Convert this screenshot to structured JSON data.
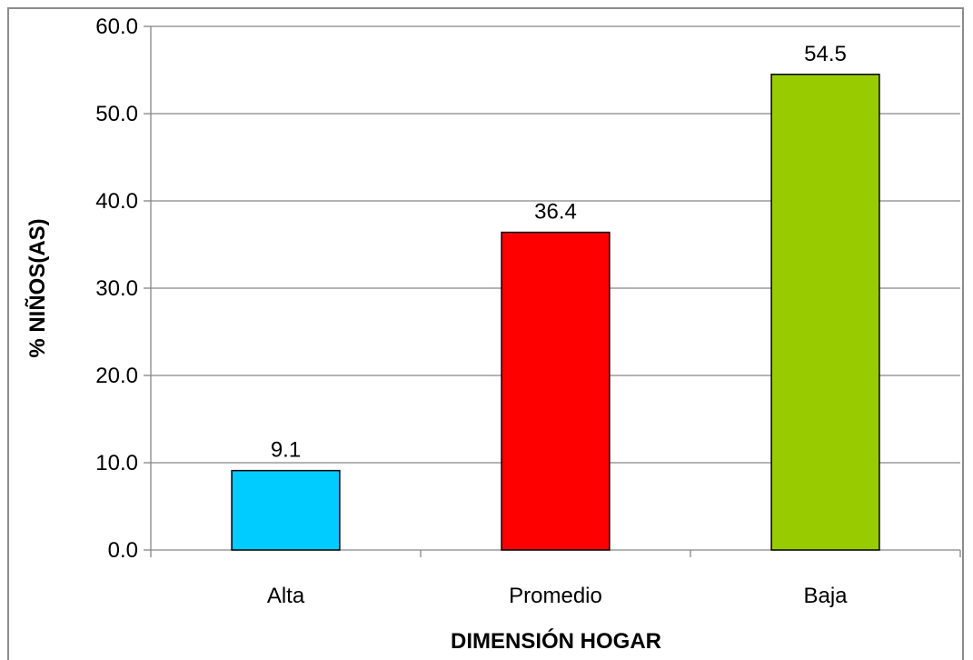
{
  "chart_data": {
    "type": "bar",
    "title": "",
    "xlabel": "DIMENSIÓN HOGAR",
    "ylabel": "% NIÑOS(AS)",
    "categories": [
      "Alta",
      "Promedio",
      "Baja"
    ],
    "values": [
      9.1,
      36.4,
      54.5
    ],
    "value_labels": [
      "9.1",
      "36.4",
      "54.5"
    ],
    "colors": [
      "#00ccff",
      "#ff0000",
      "#99cc00"
    ],
    "ylim": [
      0,
      60
    ],
    "y_ticks": [
      0,
      10,
      20,
      30,
      40,
      50,
      60
    ],
    "y_tick_labels": [
      "0.0",
      "10.0",
      "20.0",
      "30.0",
      "40.0",
      "50.0",
      "60.0"
    ],
    "grid": true,
    "legend": "none"
  }
}
